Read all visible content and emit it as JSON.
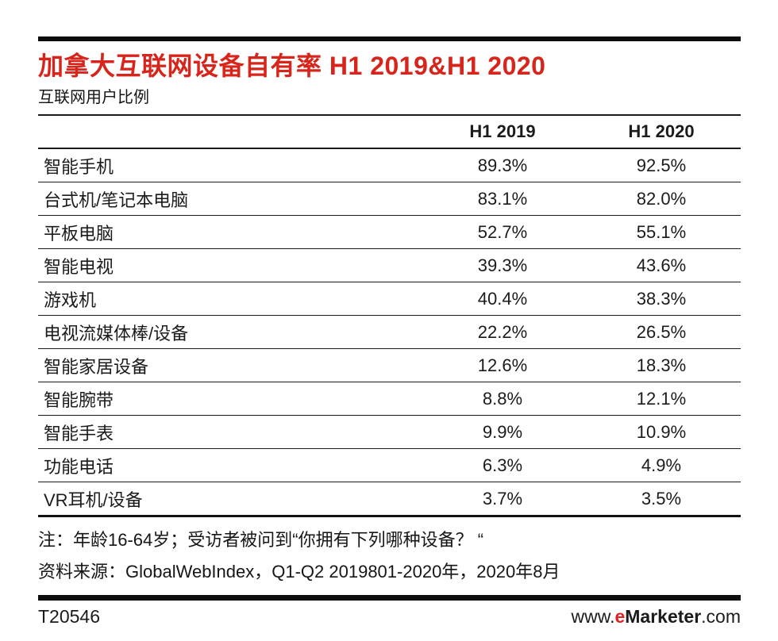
{
  "page": {
    "background": "#ffffff",
    "accent_red": "#d7251c",
    "text_color": "#1b1b1b",
    "bar_color": "#0d0d0d"
  },
  "header": {
    "title": "加拿大互联网设备自有率 H1 2019&H1 2020",
    "subtitle": "互联网用户比例"
  },
  "chart_data": {
    "type": "table",
    "title": "加拿大互联网设备自有率 H1 2019&H1 2020",
    "subtitle": "互联网用户比例",
    "unit": "% of internet users",
    "columns": [
      "H1 2019",
      "H1 2020"
    ],
    "categories": [
      "智能手机",
      "台式机/笔记本电脑",
      "平板电脑",
      "智能电视",
      "游戏机",
      "电视流媒体棒/设备",
      "智能家居设备",
      "智能腕带",
      "智能手表",
      "功能电话",
      "VR耳机/设备"
    ],
    "series": [
      {
        "name": "H1 2019",
        "values": [
          89.3,
          83.1,
          52.7,
          39.3,
          40.4,
          22.2,
          12.6,
          8.8,
          9.9,
          6.3,
          3.7
        ]
      },
      {
        "name": "H1 2020",
        "values": [
          92.5,
          82.0,
          55.1,
          43.6,
          38.3,
          26.5,
          18.3,
          12.1,
          10.9,
          4.9,
          3.5
        ]
      }
    ],
    "rows": [
      {
        "label": "智能手机",
        "values": [
          "89.3%",
          "92.5%"
        ]
      },
      {
        "label": "台式机/笔记本电脑",
        "values": [
          "83.1%",
          "82.0%"
        ]
      },
      {
        "label": "平板电脑",
        "values": [
          "52.7%",
          "55.1%"
        ]
      },
      {
        "label": "智能电视",
        "values": [
          "39.3%",
          "43.6%"
        ]
      },
      {
        "label": "游戏机",
        "values": [
          "40.4%",
          "38.3%"
        ]
      },
      {
        "label": "电视流媒体棒/设备",
        "values": [
          "22.2%",
          "26.5%"
        ]
      },
      {
        "label": "智能家居设备",
        "values": [
          "12.6%",
          "18.3%"
        ]
      },
      {
        "label": "智能腕带",
        "values": [
          "8.8%",
          "12.1%"
        ]
      },
      {
        "label": "智能手表",
        "values": [
          "9.9%",
          "10.9%"
        ]
      },
      {
        "label": "功能电话",
        "values": [
          "6.3%",
          "4.9%"
        ]
      },
      {
        "label": "VR耳机/设备",
        "values": [
          "3.7%",
          "3.5%"
        ]
      }
    ]
  },
  "notes": {
    "line1": "注：年龄16-64岁；受访者被问到“你拥有下列哪种设备？ “",
    "line2": "资料来源：GlobalWebIndex，Q1-Q2 2019801-2020年，2020年8月"
  },
  "footer": {
    "chart_id": "T20546",
    "website": {
      "prefix": "www.",
      "e": "e",
      "brand": "Marketer",
      "suffix": ".com"
    }
  }
}
